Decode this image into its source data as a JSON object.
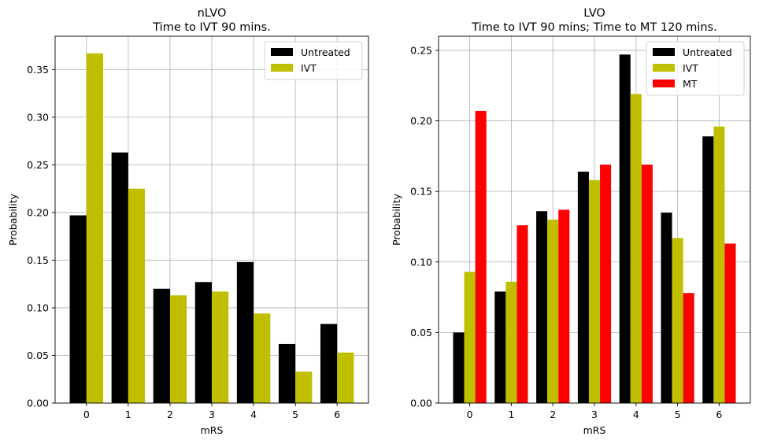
{
  "chart_data": [
    {
      "type": "bar",
      "title": "nLVO",
      "subtitle": "Time to IVT 90 mins.",
      "xlabel": "mRS",
      "ylabel": "Probability",
      "categories": [
        "0",
        "1",
        "2",
        "3",
        "4",
        "5",
        "6"
      ],
      "ylim": [
        0,
        0.385
      ],
      "yticks": [
        0.0,
        0.05,
        0.1,
        0.15,
        0.2,
        0.25,
        0.3,
        0.35
      ],
      "ytick_labels": [
        "0.00",
        "0.05",
        "0.10",
        "0.15",
        "0.20",
        "0.25",
        "0.30",
        "0.35"
      ],
      "grid": true,
      "legend_position": "top-right",
      "series": [
        {
          "name": "Untreated",
          "color": "#000000",
          "values": [
            0.197,
            0.263,
            0.12,
            0.127,
            0.148,
            0.062,
            0.083
          ]
        },
        {
          "name": "IVT",
          "color": "#bfbf00",
          "values": [
            0.367,
            0.225,
            0.113,
            0.117,
            0.094,
            0.033,
            0.053
          ]
        }
      ]
    },
    {
      "type": "bar",
      "title": "LVO",
      "subtitle": "Time to IVT 90 mins; Time to MT 120 mins.",
      "xlabel": "mRS",
      "ylabel": "Probability",
      "categories": [
        "0",
        "1",
        "2",
        "3",
        "4",
        "5",
        "6"
      ],
      "ylim": [
        0,
        0.26
      ],
      "yticks": [
        0.0,
        0.05,
        0.1,
        0.15,
        0.2,
        0.25
      ],
      "ytick_labels": [
        "0.00",
        "0.05",
        "0.10",
        "0.15",
        "0.20",
        "0.25"
      ],
      "grid": true,
      "legend_position": "top-right",
      "series": [
        {
          "name": "Untreated",
          "color": "#000000",
          "values": [
            0.05,
            0.079,
            0.136,
            0.164,
            0.247,
            0.135,
            0.189
          ]
        },
        {
          "name": "IVT",
          "color": "#bfbf00",
          "values": [
            0.093,
            0.086,
            0.13,
            0.158,
            0.219,
            0.117,
            0.196
          ]
        },
        {
          "name": "MT",
          "color": "#ff0000",
          "values": [
            0.207,
            0.126,
            0.137,
            0.169,
            0.169,
            0.078,
            0.113
          ]
        }
      ]
    }
  ]
}
